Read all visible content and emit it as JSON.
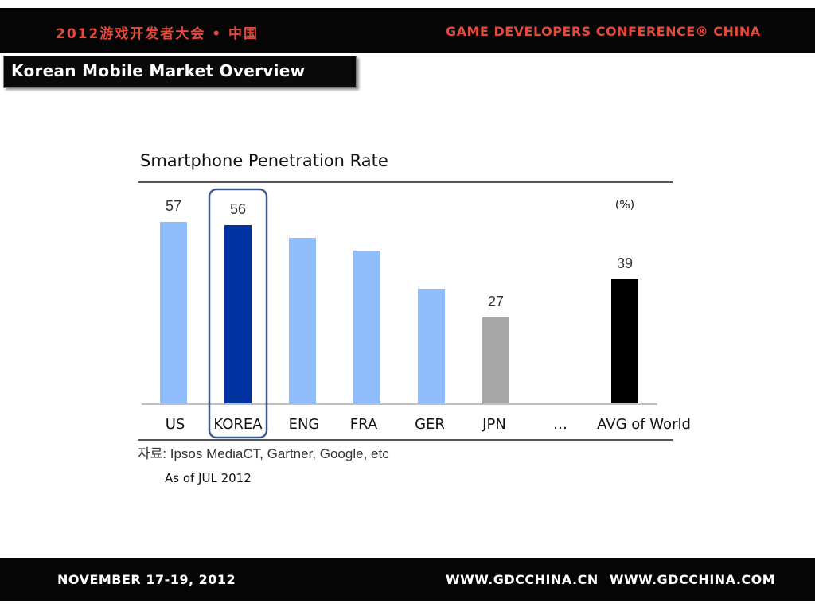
{
  "header": {
    "left_text": "2012游戏开发者大会 • 中国",
    "right_text": "GAME DEVELOPERS CONFERENCE® CHINA"
  },
  "slide": {
    "title": "Korean Mobile Market Overview"
  },
  "footer": {
    "left_text": "NOVEMBER 17-19, 2012",
    "right_text": "WWW.GDCCHINA.CN WWW.GDCCHINA.COM"
  },
  "colors": {
    "banner_bg": "#050505",
    "banner_accent": "#e44a3c",
    "bar_light_blue": "#8fbcfb",
    "bar_korea": "#0033a0",
    "bar_gray": "#a6a6a6",
    "bar_black": "#000000",
    "highlight_box": "#3d5a8a"
  },
  "chart_data": {
    "type": "bar",
    "title": "Smartphone Penetration Rate",
    "unit_label": "(%)",
    "categories": [
      "US",
      "KOREA",
      "ENG",
      "FRA",
      "GER",
      "JPN",
      "…",
      "AVG of World"
    ],
    "values": [
      57,
      56,
      52,
      48,
      36,
      27,
      null,
      39
    ],
    "value_labels": [
      "57",
      "56",
      "",
      "",
      "",
      "27",
      "",
      "39"
    ],
    "bar_colors": [
      "#8fbcfb",
      "#0033a0",
      "#8fbcfb",
      "#8fbcfb",
      "#8fbcfb",
      "#a6a6a6",
      "",
      "#000000"
    ],
    "highlight_category": "KOREA",
    "ylim": [
      0,
      57
    ],
    "xlabel": "",
    "ylabel": "",
    "grid": false,
    "source": "자료: Ipsos MediaCT, Gartner, Google, etc",
    "as_of": "As of JUL 2012"
  }
}
